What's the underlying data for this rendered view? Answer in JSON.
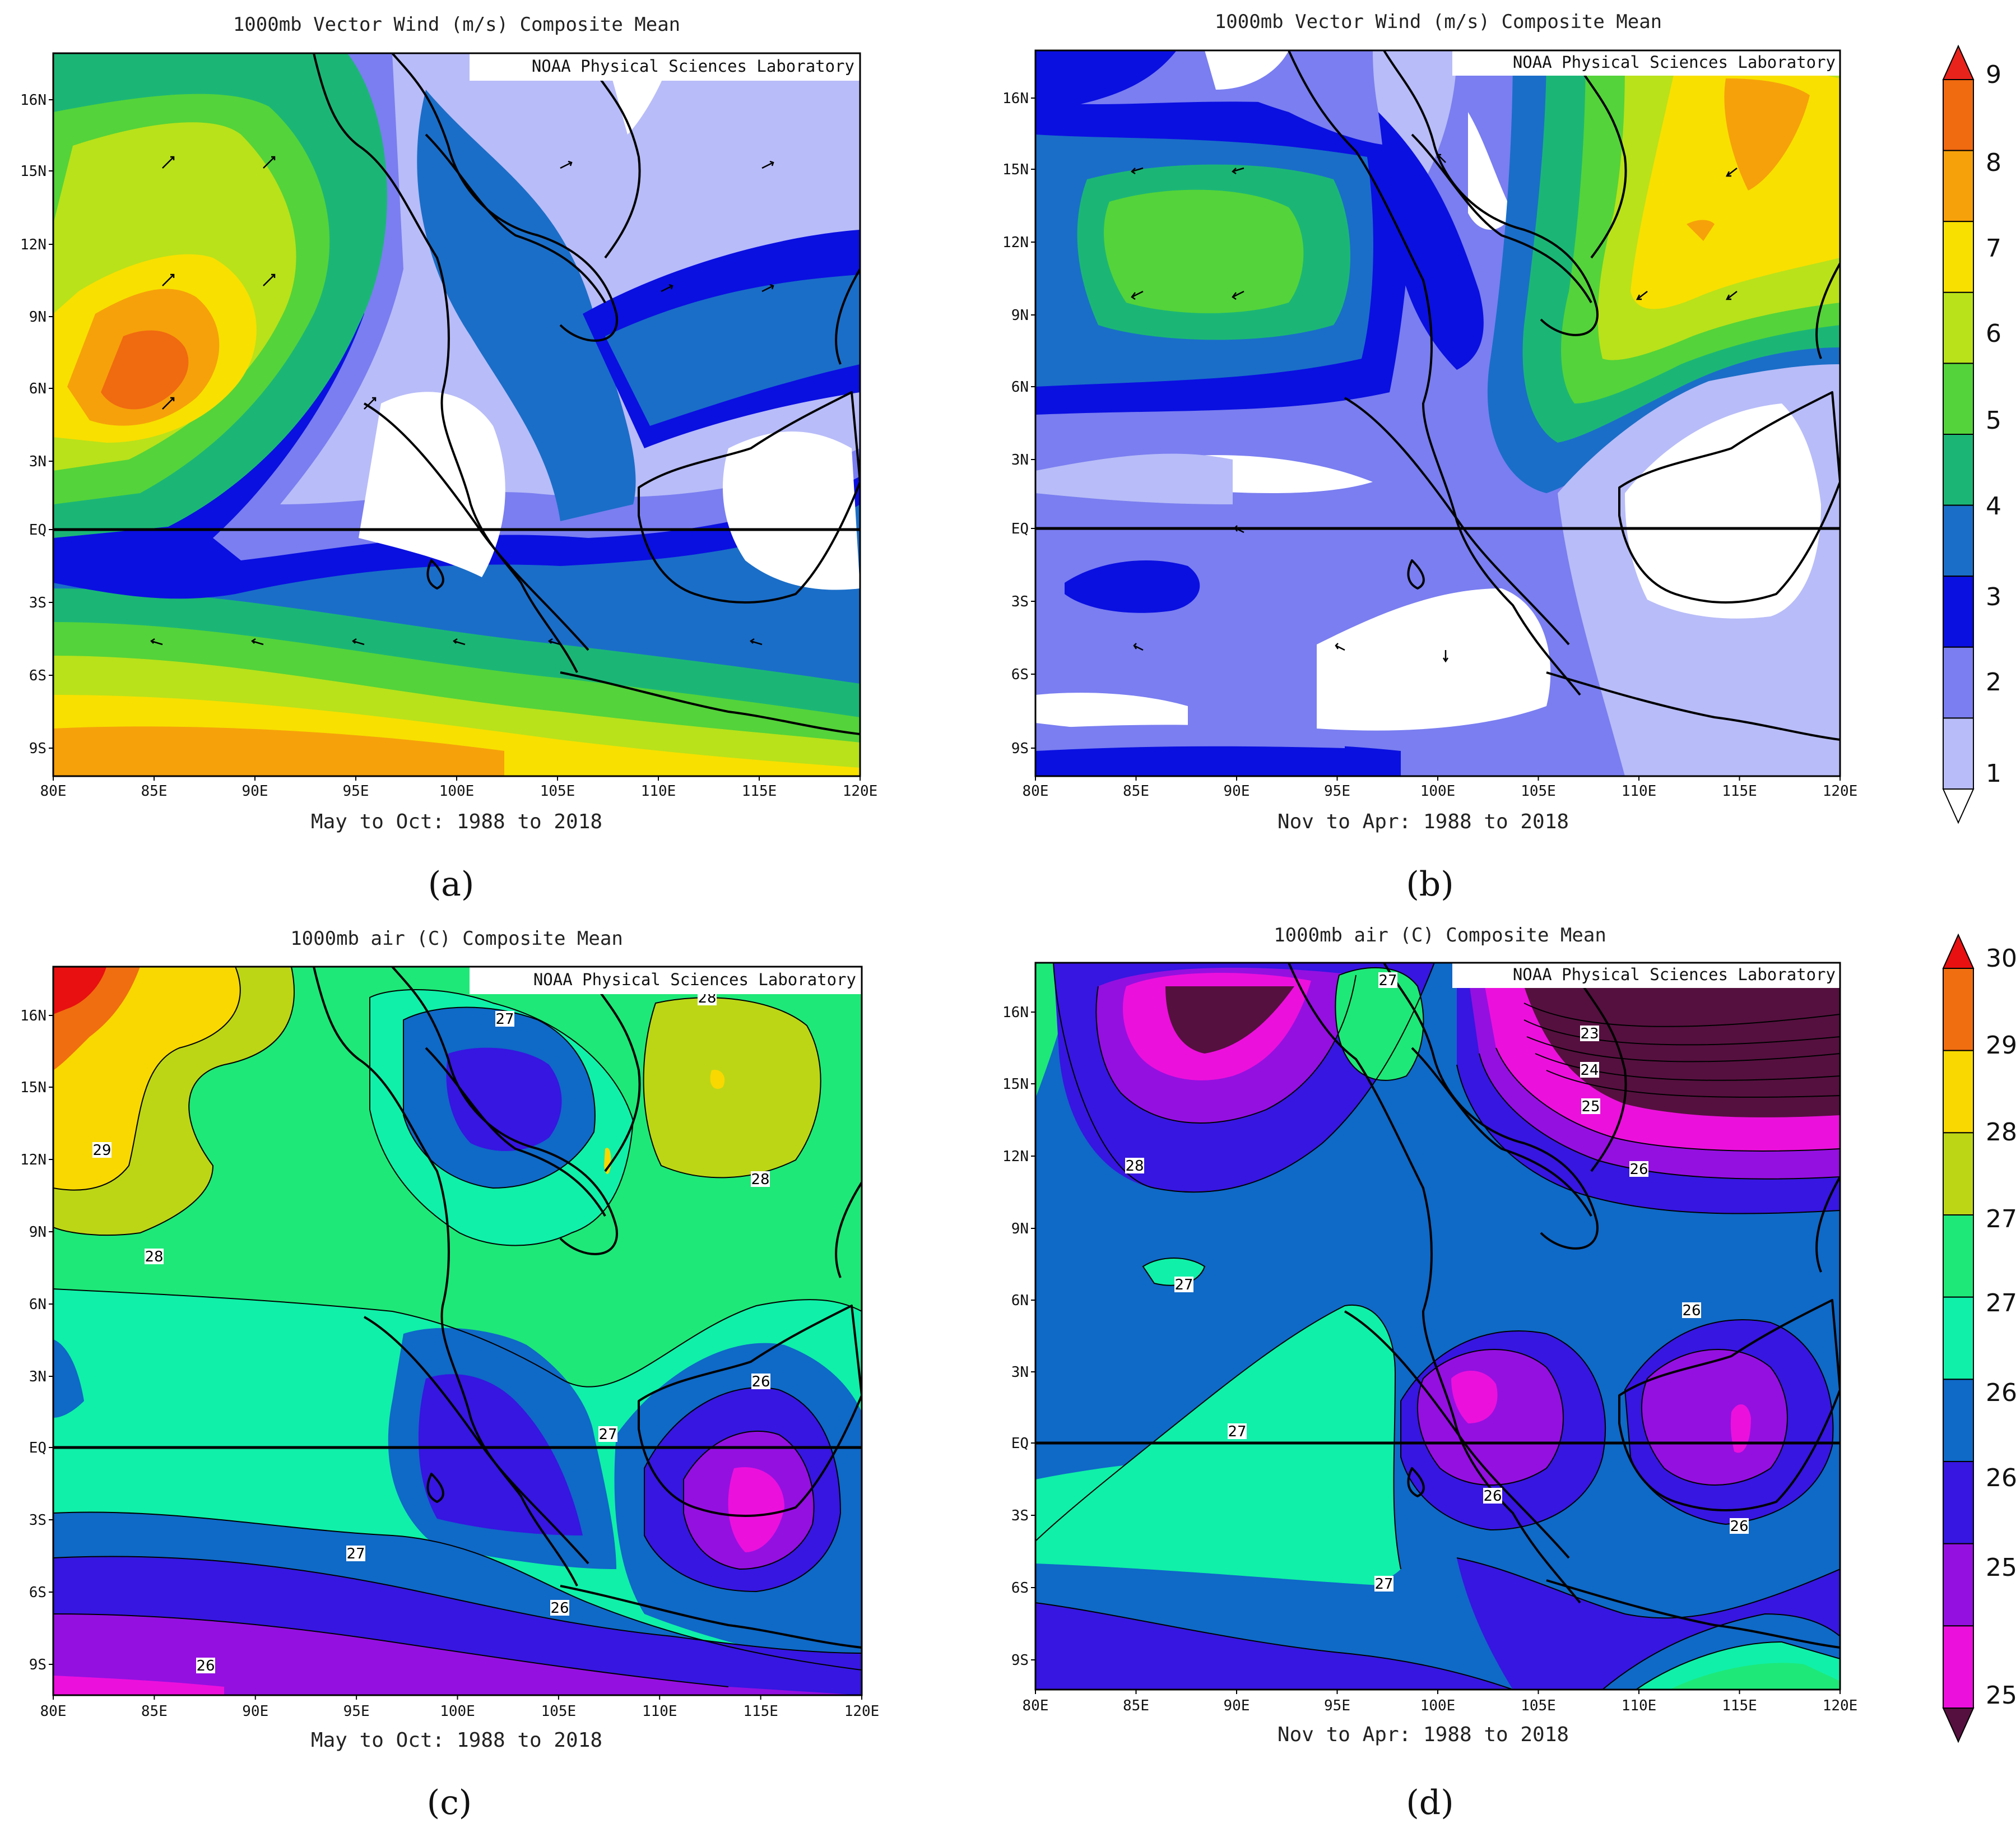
{
  "panels": {
    "a": {
      "title": "1000mb Vector Wind (m/s) Composite Mean",
      "subtitle": "May to Oct: 1988 to 2018",
      "credit": "NOAA Physical Sciences Laboratory",
      "label": "(a)",
      "contour_labels": []
    },
    "b": {
      "title": "1000mb Vector Wind (m/s) Composite Mean",
      "subtitle": "Nov to Apr: 1988 to 2018",
      "credit": "NOAA Physical Sciences Laboratory",
      "label": "(b)",
      "contour_labels": []
    },
    "c": {
      "title": "1000mb air (C) Composite Mean",
      "subtitle": "May to Oct: 1988 to 2018",
      "credit": "NOAA Physical Sciences Laboratory",
      "label": "(c)",
      "contour_labels": [
        "27",
        "28",
        "28",
        "29",
        "28",
        "27",
        "26",
        "27",
        "26",
        "26"
      ]
    },
    "d": {
      "title": "1000mb air (C) Composite Mean",
      "subtitle": "Nov to Apr: 1988 to 2018",
      "credit": "NOAA Physical Sciences Laboratory",
      "label": "(d)",
      "contour_labels": [
        "27",
        "23",
        "24",
        "25",
        "26",
        "28",
        "27",
        "26",
        "27",
        "26",
        "26",
        "27"
      ]
    }
  },
  "axes": {
    "lon_ticks": [
      "80E",
      "85E",
      "90E",
      "95E",
      "100E",
      "105E",
      "110E",
      "115E",
      "120E"
    ],
    "lat_ticks": [
      "16N",
      "15N",
      "12N",
      "9N",
      "6N",
      "3N",
      "EQ",
      "3S",
      "6S",
      "9S"
    ]
  },
  "colorbars": {
    "wind": {
      "labels": [
        "9",
        "8",
        "7",
        "6",
        "5",
        "4",
        "3",
        "2",
        "1"
      ],
      "colors": [
        "#e8231c",
        "#f06a10",
        "#f6a10a",
        "#f8e000",
        "#b9e21a",
        "#54d33a",
        "#1bb676",
        "#1a6ec8",
        "#0a10e0",
        "#7a7ef0",
        "#b8bcf8",
        "#ffffff"
      ]
    },
    "air": {
      "labels": [
        "30",
        "29",
        "28",
        "27",
        "27",
        "26",
        "26",
        "25",
        "25"
      ],
      "colors": [
        "#e81010",
        "#f06e10",
        "#f8d800",
        "#bcd616",
        "#1ee878",
        "#10f0a8",
        "#0f69c7",
        "#3616e0",
        "#9410e0",
        "#ec10dc",
        "#55103f"
      ]
    }
  }
}
